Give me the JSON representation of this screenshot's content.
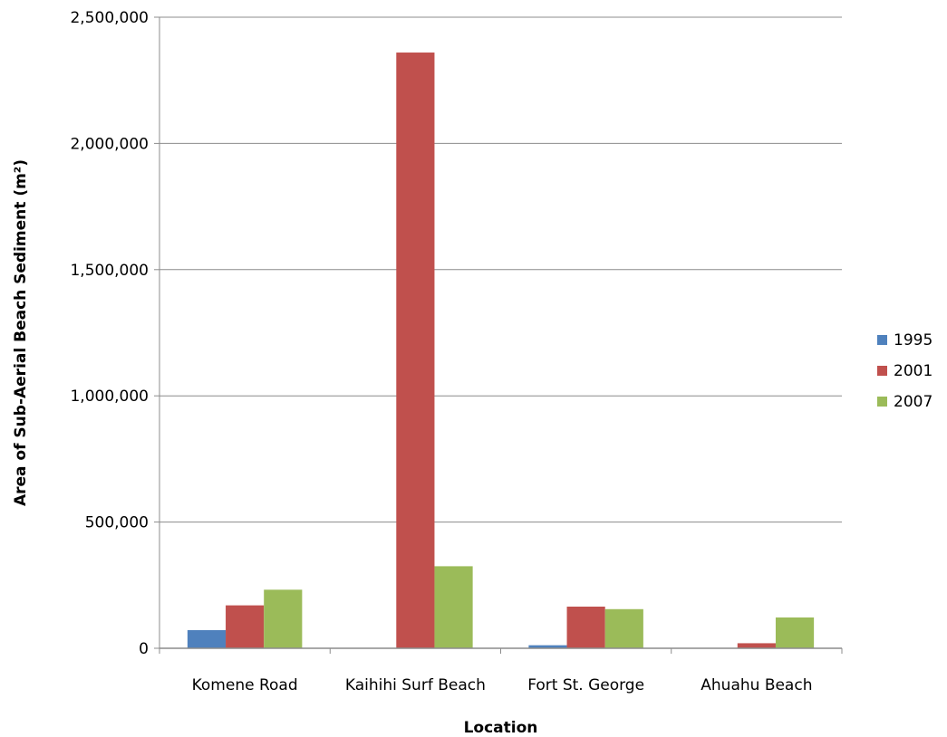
{
  "chart_data": {
    "type": "bar",
    "title": "",
    "xlabel": "Location",
    "ylabel": "Area of Sub-Aerial Beach Sediment (m²)",
    "categories": [
      "Komene Road",
      "Kaihihi Surf Beach",
      "Fort St. George",
      "Ahuahu Beach"
    ],
    "series": [
      {
        "name": "1995",
        "color": "#4F81BD",
        "values": [
          72000,
          0,
          12000,
          0
        ]
      },
      {
        "name": "2001",
        "color": "#C0504D",
        "values": [
          170000,
          2360000,
          165000,
          20000
        ]
      },
      {
        "name": "2007",
        "color": "#9BBB59",
        "values": [
          232000,
          325000,
          155000,
          122000
        ]
      }
    ],
    "ylim": [
      0,
      2500000
    ],
    "yticks": [
      0,
      500000,
      1000000,
      1500000,
      2000000,
      2500000
    ],
    "ytick_labels": [
      "0",
      "500,000",
      "1,000,000",
      "1,500,000",
      "2,000,000",
      "2,500,000"
    ],
    "grid": true,
    "legend_position": "right"
  }
}
